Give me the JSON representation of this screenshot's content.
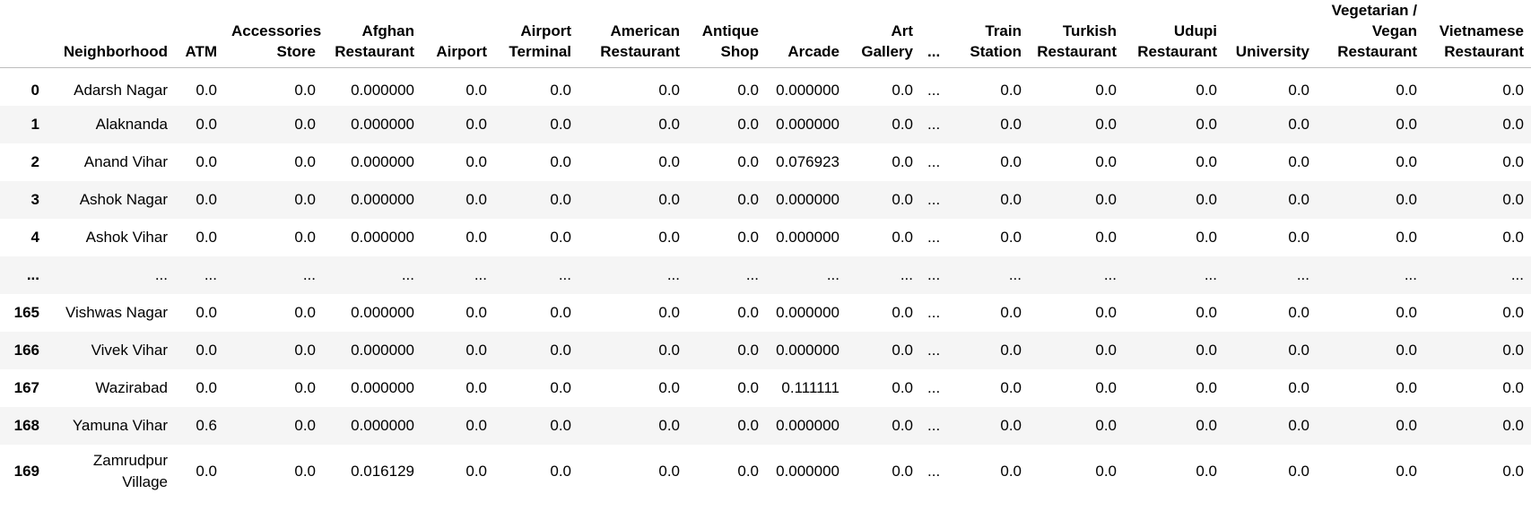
{
  "table": {
    "index_header": "",
    "columns": [
      "Neighborhood",
      "ATM",
      "Accessories Store",
      "Afghan Restaurant",
      "Airport",
      "Airport Terminal",
      "American Restaurant",
      "Antique Shop",
      "Arcade",
      "Art Gallery",
      "...",
      "Train Station",
      "Turkish Restaurant",
      "Udupi Restaurant",
      "University",
      "Vegetarian / Vegan Restaurant",
      "Vietnamese Restaurant"
    ],
    "rows": [
      {
        "index": "0",
        "cells": [
          "Adarsh Nagar",
          "0.0",
          "0.0",
          "0.000000",
          "0.0",
          "0.0",
          "0.0",
          "0.0",
          "0.000000",
          "0.0",
          "...",
          "0.0",
          "0.0",
          "0.0",
          "0.0",
          "0.0",
          "0.0"
        ]
      },
      {
        "index": "1",
        "cells": [
          "Alaknanda",
          "0.0",
          "0.0",
          "0.000000",
          "0.0",
          "0.0",
          "0.0",
          "0.0",
          "0.000000",
          "0.0",
          "...",
          "0.0",
          "0.0",
          "0.0",
          "0.0",
          "0.0",
          "0.0"
        ]
      },
      {
        "index": "2",
        "cells": [
          "Anand Vihar",
          "0.0",
          "0.0",
          "0.000000",
          "0.0",
          "0.0",
          "0.0",
          "0.0",
          "0.076923",
          "0.0",
          "...",
          "0.0",
          "0.0",
          "0.0",
          "0.0",
          "0.0",
          "0.0"
        ]
      },
      {
        "index": "3",
        "cells": [
          "Ashok Nagar",
          "0.0",
          "0.0",
          "0.000000",
          "0.0",
          "0.0",
          "0.0",
          "0.0",
          "0.000000",
          "0.0",
          "...",
          "0.0",
          "0.0",
          "0.0",
          "0.0",
          "0.0",
          "0.0"
        ]
      },
      {
        "index": "4",
        "cells": [
          "Ashok Vihar",
          "0.0",
          "0.0",
          "0.000000",
          "0.0",
          "0.0",
          "0.0",
          "0.0",
          "0.000000",
          "0.0",
          "...",
          "0.0",
          "0.0",
          "0.0",
          "0.0",
          "0.0",
          "0.0"
        ]
      },
      {
        "index": "...",
        "cells": [
          "...",
          "...",
          "...",
          "...",
          "...",
          "...",
          "...",
          "...",
          "...",
          "...",
          "...",
          "...",
          "...",
          "...",
          "...",
          "...",
          "..."
        ]
      },
      {
        "index": "165",
        "cells": [
          "Vishwas Nagar",
          "0.0",
          "0.0",
          "0.000000",
          "0.0",
          "0.0",
          "0.0",
          "0.0",
          "0.000000",
          "0.0",
          "...",
          "0.0",
          "0.0",
          "0.0",
          "0.0",
          "0.0",
          "0.0"
        ]
      },
      {
        "index": "166",
        "cells": [
          "Vivek Vihar",
          "0.0",
          "0.0",
          "0.000000",
          "0.0",
          "0.0",
          "0.0",
          "0.0",
          "0.000000",
          "0.0",
          "...",
          "0.0",
          "0.0",
          "0.0",
          "0.0",
          "0.0",
          "0.0"
        ]
      },
      {
        "index": "167",
        "cells": [
          "Wazirabad",
          "0.0",
          "0.0",
          "0.000000",
          "0.0",
          "0.0",
          "0.0",
          "0.0",
          "0.111111",
          "0.0",
          "...",
          "0.0",
          "0.0",
          "0.0",
          "0.0",
          "0.0",
          "0.0"
        ]
      },
      {
        "index": "168",
        "cells": [
          "Yamuna Vihar",
          "0.6",
          "0.0",
          "0.000000",
          "0.0",
          "0.0",
          "0.0",
          "0.0",
          "0.000000",
          "0.0",
          "...",
          "0.0",
          "0.0",
          "0.0",
          "0.0",
          "0.0",
          "0.0"
        ]
      },
      {
        "index": "169",
        "cells": [
          "Zamrudpur Village",
          "0.0",
          "0.0",
          "0.016129",
          "0.0",
          "0.0",
          "0.0",
          "0.0",
          "0.000000",
          "0.0",
          "...",
          "0.0",
          "0.0",
          "0.0",
          "0.0",
          "0.0",
          "0.0"
        ]
      }
    ]
  }
}
